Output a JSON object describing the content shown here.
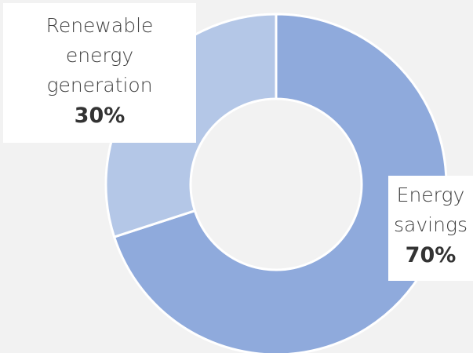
{
  "chart_data": {
    "type": "pie",
    "donut": true,
    "slices": [
      {
        "label": "Energy savings",
        "value": 70,
        "value_label": "70%",
        "color": "#8faadc"
      },
      {
        "label": "Renewable energy generation",
        "value": 30,
        "value_label": "30%",
        "color": "#b4c7e7"
      }
    ],
    "legend": "none",
    "start_angle_deg": 0,
    "direction": "clockwise"
  },
  "labels": {
    "renewable_line1": "Renewable",
    "renewable_line2": "energy",
    "renewable_line3": "generation",
    "renewable_pct": "30%",
    "savings_line1": "Energy",
    "savings_line2": "savings",
    "savings_pct": "70%"
  }
}
